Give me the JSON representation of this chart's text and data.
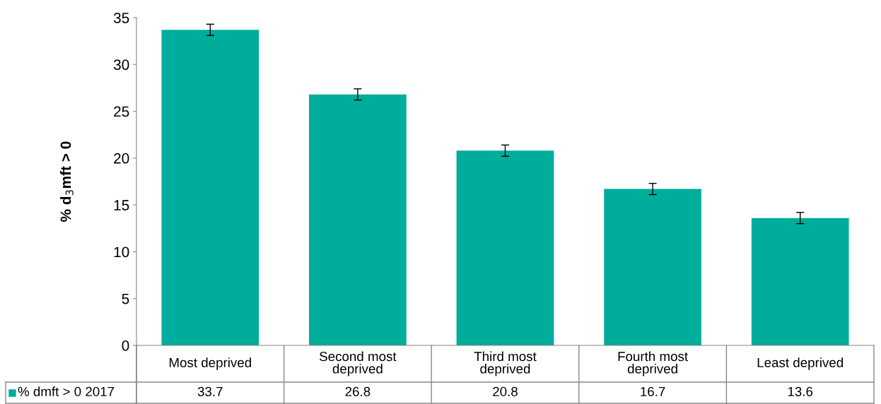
{
  "chart_data": {
    "type": "bar",
    "ylabel": "% d$_{3}$mft > 0",
    "categories": [
      "Most deprived",
      "Second most deprived",
      "Third most deprived",
      "Fourth most deprived",
      "Least deprived"
    ],
    "series": [
      {
        "name": "% dmft > 0 2017",
        "color": "#00ac9c",
        "values": [
          33.7,
          26.8,
          20.8,
          16.7,
          13.6
        ],
        "errors": [
          0.6,
          0.6,
          0.6,
          0.6,
          0.6
        ]
      }
    ],
    "ylim": [
      0,
      35
    ],
    "yticks": [
      0,
      5,
      10,
      15,
      20,
      25,
      30,
      35
    ],
    "grid": false,
    "legend": "bottom",
    "data_labels": true
  }
}
